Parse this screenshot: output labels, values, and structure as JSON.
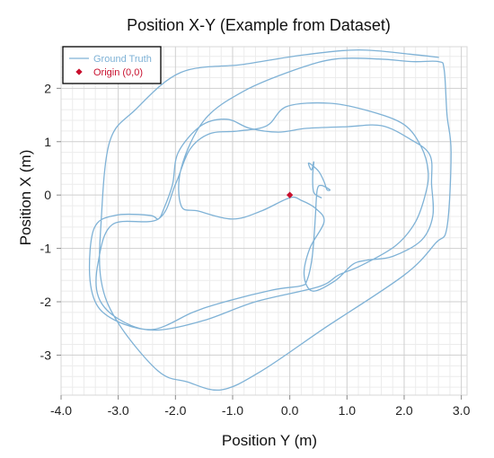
{
  "chart_data": {
    "type": "line",
    "title": "Position X-Y (Example from Dataset)",
    "xlabel": "Position Y (m)",
    "ylabel": "Position X (m)",
    "xlim": [
      -4.0,
      3.1
    ],
    "ylim": [
      -3.75,
      2.78
    ],
    "x_ticks": [
      {
        "value": -4,
        "label": "-4.0"
      },
      {
        "value": -3,
        "label": "-3.0"
      },
      {
        "value": -2,
        "label": "-2.0"
      },
      {
        "value": -1,
        "label": "-1.0"
      },
      {
        "value": 0,
        "label": "0.0"
      },
      {
        "value": 1,
        "label": "1.0"
      },
      {
        "value": 2,
        "label": "2.0"
      },
      {
        "value": 3,
        "label": "3.0"
      }
    ],
    "y_ticks": [
      {
        "value": 2,
        "label": "2"
      },
      {
        "value": 1,
        "label": "1"
      },
      {
        "value": 0,
        "label": "0"
      },
      {
        "value": -1,
        "label": "-1"
      },
      {
        "value": -2,
        "label": "-2"
      },
      {
        "value": -3,
        "label": "-3"
      }
    ],
    "grid": true,
    "legend_position": "top-left",
    "series": [
      {
        "name": "Ground Truth",
        "color": "#7fb2d6",
        "points": [
          [
            0.55,
            -0.05
          ],
          [
            0.42,
            0.05
          ],
          [
            0.4,
            0.35
          ],
          [
            0.42,
            0.62
          ],
          [
            0.38,
            0.47
          ],
          [
            0.33,
            0.6
          ],
          [
            0.5,
            0.45
          ],
          [
            0.6,
            0.25
          ],
          [
            0.65,
            0.1
          ],
          [
            0.7,
            0.1
          ],
          [
            0.55,
            0.18
          ],
          [
            0.48,
            0.1
          ],
          [
            0.45,
            -0.35
          ],
          [
            0.42,
            -0.85
          ],
          [
            0.38,
            -1.25
          ],
          [
            0.3,
            -1.6
          ],
          [
            0.2,
            -1.7
          ],
          [
            -0.3,
            -1.78
          ],
          [
            -1.2,
            -2.02
          ],
          [
            -1.7,
            -2.2
          ],
          [
            -2.4,
            -2.52
          ],
          [
            -3.0,
            -2.32
          ],
          [
            -3.35,
            -1.9
          ],
          [
            -3.35,
            -1.25
          ],
          [
            -3.1,
            -0.55
          ],
          [
            -2.3,
            -0.45
          ],
          [
            -2.0,
            0.2
          ],
          [
            -1.75,
            0.85
          ],
          [
            -1.4,
            1.15
          ],
          [
            -0.9,
            1.2
          ],
          [
            -0.4,
            1.3
          ],
          [
            -0.05,
            1.66
          ],
          [
            0.7,
            1.72
          ],
          [
            1.4,
            1.57
          ],
          [
            2.0,
            1.32
          ],
          [
            2.3,
            0.9
          ],
          [
            2.42,
            0.45
          ],
          [
            2.38,
            0.05
          ],
          [
            2.2,
            -0.5
          ],
          [
            1.85,
            -0.95
          ],
          [
            1.25,
            -1.32
          ],
          [
            0.85,
            -1.5
          ],
          [
            0.5,
            -1.72
          ],
          [
            -0.6,
            -2.0
          ],
          [
            -1.5,
            -2.35
          ],
          [
            -2.3,
            -2.53
          ],
          [
            -2.9,
            -2.42
          ],
          [
            -3.35,
            -2.1
          ],
          [
            -3.5,
            -1.5
          ],
          [
            -3.42,
            -0.62
          ],
          [
            -3.05,
            -0.38
          ],
          [
            -2.45,
            -0.38
          ],
          [
            -2.3,
            -0.45
          ],
          [
            -2.2,
            -0.25
          ],
          [
            -2.05,
            0.2
          ],
          [
            -1.95,
            0.8
          ],
          [
            -1.55,
            1.3
          ],
          [
            -1.1,
            1.42
          ],
          [
            -0.7,
            1.25
          ],
          [
            -0.2,
            1.18
          ],
          [
            0.3,
            1.25
          ],
          [
            1.0,
            1.28
          ],
          [
            1.6,
            1.3
          ],
          [
            2.1,
            1.05
          ],
          [
            2.45,
            0.75
          ],
          [
            2.48,
            0.2
          ],
          [
            2.5,
            -0.4
          ],
          [
            2.3,
            -0.85
          ],
          [
            1.8,
            -1.15
          ],
          [
            1.35,
            -1.22
          ],
          [
            1.1,
            -1.3
          ],
          [
            0.8,
            -1.6
          ],
          [
            0.4,
            -1.8
          ],
          [
            0.25,
            -1.5
          ],
          [
            0.35,
            -1.0
          ],
          [
            0.6,
            -0.5
          ],
          [
            0.45,
            -0.25
          ],
          [
            0.2,
            -0.1
          ],
          [
            0.0,
            -0.05
          ],
          [
            -0.5,
            -0.3
          ],
          [
            -1.0,
            -0.45
          ],
          [
            -1.6,
            -0.3
          ],
          [
            -1.9,
            -0.2
          ],
          [
            -1.9,
            0.5
          ],
          [
            -1.5,
            1.4
          ],
          [
            -0.8,
            1.95
          ],
          [
            0.1,
            2.35
          ],
          [
            0.8,
            2.55
          ],
          [
            1.55,
            2.55
          ],
          [
            2.15,
            2.5
          ],
          [
            2.6,
            2.5
          ],
          [
            2.7,
            2.35
          ],
          [
            2.75,
            1.5
          ],
          [
            2.82,
            0.8
          ],
          [
            2.75,
            -0.6
          ],
          [
            2.55,
            -0.9
          ],
          [
            2.0,
            -1.5
          ],
          [
            0.6,
            -2.5
          ],
          [
            -0.5,
            -3.3
          ],
          [
            -1.2,
            -3.65
          ],
          [
            -1.8,
            -3.5
          ],
          [
            -2.3,
            -3.3
          ],
          [
            -3.0,
            -2.4
          ],
          [
            -3.3,
            -1.6
          ],
          [
            -3.3,
            -0.5
          ],
          [
            -3.15,
            1.0
          ],
          [
            -2.7,
            1.6
          ],
          [
            -1.9,
            2.3
          ],
          [
            -0.8,
            2.45
          ],
          [
            0.2,
            2.62
          ],
          [
            1.2,
            2.72
          ],
          [
            2.1,
            2.64
          ],
          [
            2.6,
            2.58
          ]
        ]
      }
    ],
    "markers": [
      {
        "name": "Origin (0,0)",
        "x": 0,
        "y": 0,
        "color": "#c8102e",
        "shape": "diamond"
      }
    ]
  }
}
